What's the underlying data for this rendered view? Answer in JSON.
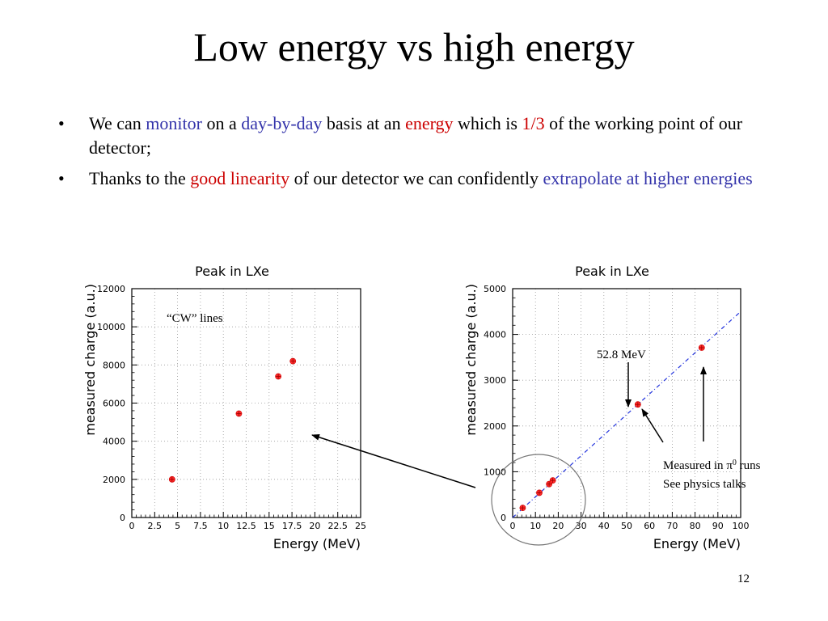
{
  "slide": {
    "title": "Low energy vs high energy",
    "page_number": "12",
    "bullets": [
      {
        "parts": [
          {
            "text": "We can ",
            "color": "black"
          },
          {
            "text": "monitor",
            "color": "blue"
          },
          {
            "text": " on a ",
            "color": "black"
          },
          {
            "text": "day-by-day",
            "color": "blue"
          },
          {
            "text": " basis at an ",
            "color": "black"
          },
          {
            "text": "energy",
            "color": "red"
          },
          {
            "text": " which is ",
            "color": "black"
          },
          {
            "text": "1/3",
            "color": "red"
          },
          {
            "text": " of the working point of our detector;",
            "color": "black"
          }
        ]
      },
      {
        "parts": [
          {
            "text": "Thanks to the ",
            "color": "black"
          },
          {
            "text": "good linearity",
            "color": "red"
          },
          {
            "text": " of our detector we can confidently ",
            "color": "black"
          },
          {
            "text": "extrapolate at higher energies",
            "color": "blue"
          }
        ]
      }
    ],
    "annotations": {
      "cw_lines": "“CW” lines",
      "energy_label": "52.8 MeV",
      "measured_line1_pre": "Measured in ",
      "measured_pi": "π",
      "measured_sup": "0",
      "measured_line1_post": " runs",
      "measured_line2": "See physics talks"
    }
  },
  "colors": {
    "blue_text": "#3333aa",
    "red_text": "#cc0000",
    "marker": "#ff2a2a",
    "fit_line": "#2233dd"
  },
  "chart_data": [
    {
      "type": "scatter",
      "title": "Peak in LXe",
      "xlabel": "Energy (MeV)",
      "ylabel": "measured charge (a.u.)",
      "xlim": [
        0,
        25
      ],
      "ylim": [
        0,
        12000
      ],
      "xticks": [
        "0",
        "2.5",
        "5",
        "7.5",
        "10",
        "12.5",
        "15",
        "17.5",
        "20",
        "22.5",
        "25"
      ],
      "yticks": [
        "0",
        "2000",
        "4000",
        "6000",
        "8000",
        "10000",
        "12000"
      ],
      "grid": true,
      "points": [
        {
          "x": 4.4,
          "y": 2000
        },
        {
          "x": 11.7,
          "y": 5450
        },
        {
          "x": 16.0,
          "y": 7400
        },
        {
          "x": 17.6,
          "y": 8200
        }
      ]
    },
    {
      "type": "scatter",
      "title": "Peak in LXe",
      "xlabel": "Energy (MeV)",
      "ylabel": "measured charge (a.u.)",
      "xlim": [
        0,
        100
      ],
      "ylim": [
        0,
        5000
      ],
      "xticks": [
        "0",
        "10",
        "20",
        "30",
        "40",
        "50",
        "60",
        "70",
        "80",
        "90",
        "100"
      ],
      "yticks": [
        "0",
        "1000",
        "2000",
        "3000",
        "4000",
        "5000"
      ],
      "grid": true,
      "points": [
        {
          "x": 4.4,
          "y": 210
        },
        {
          "x": 11.7,
          "y": 540
        },
        {
          "x": 16.0,
          "y": 730
        },
        {
          "x": 17.6,
          "y": 810
        },
        {
          "x": 54.9,
          "y": 2470
        },
        {
          "x": 82.9,
          "y": 3710
        }
      ],
      "fit_line": {
        "x": [
          0,
          100
        ],
        "y": [
          0,
          4500
        ]
      }
    }
  ]
}
